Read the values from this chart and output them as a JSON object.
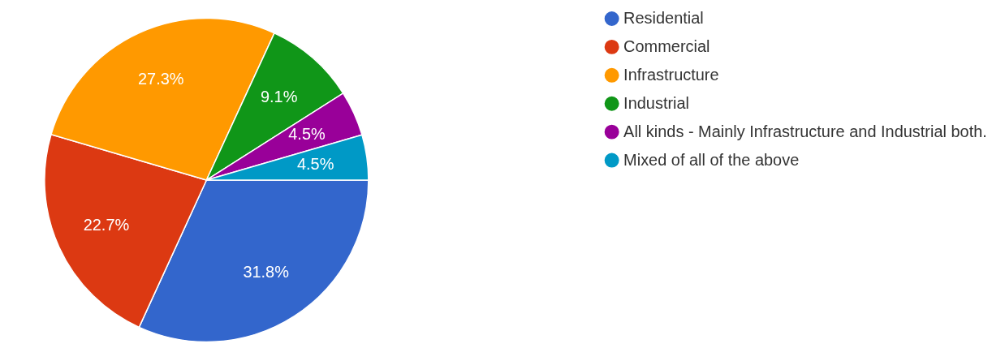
{
  "chart_data": {
    "type": "pie",
    "categories": [
      "Residential",
      "Commercial",
      "Infrastructure",
      "Industrial",
      "All kinds - Mainly Infrastructure and Industrial both.",
      "Mixed of all of the above"
    ],
    "values": [
      31.8,
      22.7,
      27.3,
      9.1,
      4.5,
      4.5
    ],
    "colors": [
      "#3366cc",
      "#dc3912",
      "#ff9900",
      "#109618",
      "#990099",
      "#0099c6"
    ],
    "value_labels": [
      "31.8%",
      "22.7%",
      "27.3%",
      "9.1%",
      "4.5%",
      "4.5%"
    ],
    "legend": "right"
  }
}
